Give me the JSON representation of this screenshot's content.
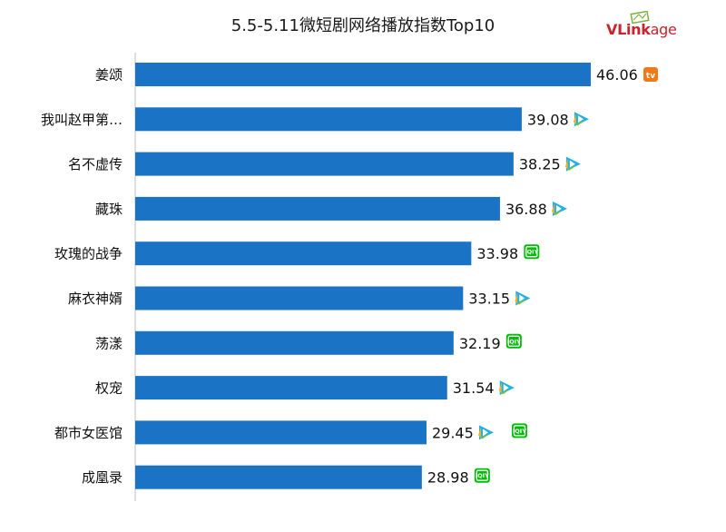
{
  "title": "5.5-5.11微短剧网络播放指数Top10",
  "logo": {
    "text_a": "VLink",
    "text_b": "age",
    "color": "#c9232d"
  },
  "bar_color": "#1a73c4",
  "chart_data": {
    "type": "bar",
    "orientation": "horizontal",
    "title": "5.5-5.11微短剧网络播放指数Top10",
    "categories": [
      "姜颂",
      "我叫赵甲第…",
      "名不虚传",
      "藏珠",
      "玫瑰的战争",
      "麻衣神婿",
      "荡漾",
      "权宠",
      "都市女医馆",
      "成凰录"
    ],
    "values": [
      46.06,
      39.08,
      38.25,
      36.88,
      33.98,
      33.15,
      32.19,
      31.54,
      29.45,
      28.98
    ],
    "value_labels": [
      "46.06",
      "39.08",
      "38.25",
      "36.88",
      "33.98",
      "33.15",
      "32.19",
      "31.54",
      "29.45",
      "28.98"
    ],
    "platforms": [
      [
        "mango-tv-icon"
      ],
      [
        "tencent-video-icon"
      ],
      [
        "tencent-video-icon"
      ],
      [
        "tencent-video-icon"
      ],
      [
        "iqiyi-icon"
      ],
      [
        "tencent-video-icon"
      ],
      [
        "iqiyi-icon"
      ],
      [
        "tencent-video-icon"
      ],
      [
        "tencent-video-icon",
        "iqiyi-icon"
      ],
      [
        "iqiyi-icon"
      ]
    ],
    "xlim": [
      0,
      46.06
    ],
    "grid": false,
    "legend": "none"
  }
}
